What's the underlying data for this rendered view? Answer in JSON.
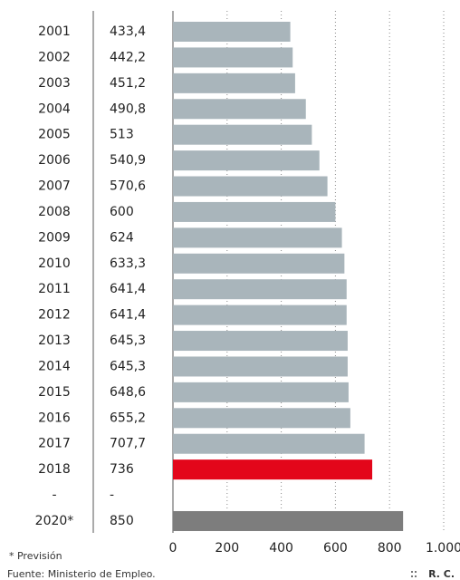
{
  "chart_data": {
    "type": "bar",
    "categories": [
      "2001",
      "2002",
      "2003",
      "2004",
      "2005",
      "2006",
      "2007",
      "2008",
      "2009",
      "2010",
      "2011",
      "2012",
      "2013",
      "2014",
      "2015",
      "2016",
      "2017",
      "2018",
      "-",
      "2020*"
    ],
    "values": [
      433.4,
      442.2,
      451.2,
      490.8,
      513,
      540.9,
      570.6,
      600,
      624,
      633.3,
      641.4,
      641.4,
      645.3,
      645.3,
      648.6,
      655.2,
      707.7,
      736,
      null,
      850
    ],
    "value_labels": [
      "433,4",
      "442,2",
      "451,2",
      "490,8",
      "513",
      "540,9",
      "570,6",
      "600",
      "624",
      "633,3",
      "641,4",
      "641,4",
      "645,3",
      "645,3",
      "648,6",
      "655,2",
      "707,7",
      "736",
      "-",
      "850"
    ],
    "colors": [
      "#a9b5bb",
      "#a9b5bb",
      "#a9b5bb",
      "#a9b5bb",
      "#a9b5bb",
      "#a9b5bb",
      "#a9b5bb",
      "#a9b5bb",
      "#a9b5bb",
      "#a9b5bb",
      "#a9b5bb",
      "#a9b5bb",
      "#a9b5bb",
      "#a9b5bb",
      "#a9b5bb",
      "#a9b5bb",
      "#a9b5bb",
      "#e3061a",
      "#a9b5bb",
      "#7d7d7d"
    ],
    "xlim": [
      0,
      1000
    ],
    "xticks": [
      0,
      200,
      400,
      600,
      800,
      {
        "value": 1000,
        "label": "1.000"
      }
    ],
    "grid": true,
    "note": "* Previsión",
    "source": "Fuente: Ministerio de Empleo.",
    "credit": "R. C."
  }
}
